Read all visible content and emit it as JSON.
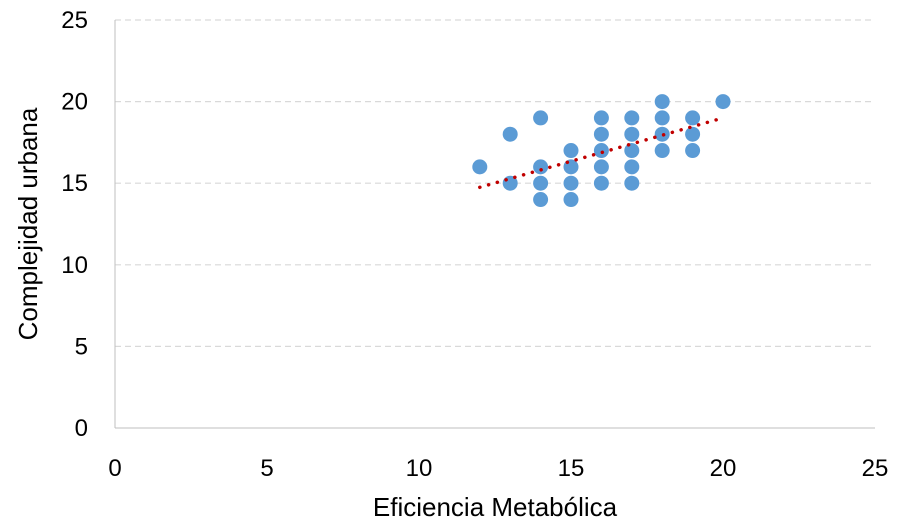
{
  "chart_data": {
    "type": "scatter",
    "title": "",
    "xlabel": "Eficiencia Metabólica",
    "ylabel": "Complejidad urbana",
    "xlim": [
      0,
      25
    ],
    "ylim": [
      0,
      25
    ],
    "xticks": [
      "0",
      "5",
      "10",
      "15",
      "20",
      "25"
    ],
    "yticks": [
      "0",
      "5",
      "10",
      "15",
      "20",
      "25"
    ],
    "grid": "horizontal dashed",
    "legend": "none",
    "colors": {
      "points": "#5B9BD5",
      "trendline": "#C00000",
      "grid": "#D9D9D9",
      "axis": "#BFBFBF"
    },
    "series": [
      {
        "points": [
          [
            12,
            16
          ],
          [
            13,
            18
          ],
          [
            13,
            15
          ],
          [
            14,
            19
          ],
          [
            14,
            16
          ],
          [
            14,
            15
          ],
          [
            14,
            14
          ],
          [
            15,
            17
          ],
          [
            15,
            16
          ],
          [
            15,
            15
          ],
          [
            15,
            14
          ],
          [
            16,
            19
          ],
          [
            16,
            18
          ],
          [
            16,
            17
          ],
          [
            16,
            16
          ],
          [
            16,
            15
          ],
          [
            17,
            19
          ],
          [
            17,
            18
          ],
          [
            17,
            17
          ],
          [
            17,
            16
          ],
          [
            17,
            15
          ],
          [
            18,
            20
          ],
          [
            18,
            19
          ],
          [
            18,
            18
          ],
          [
            18,
            17
          ],
          [
            19,
            19
          ],
          [
            19,
            18
          ],
          [
            19,
            17
          ],
          [
            20,
            20
          ]
        ]
      }
    ],
    "trendline": {
      "type": "linear",
      "style": "dotted",
      "x_range": [
        12,
        20
      ],
      "y_start": 14.75,
      "y_end": 19.0
    }
  }
}
